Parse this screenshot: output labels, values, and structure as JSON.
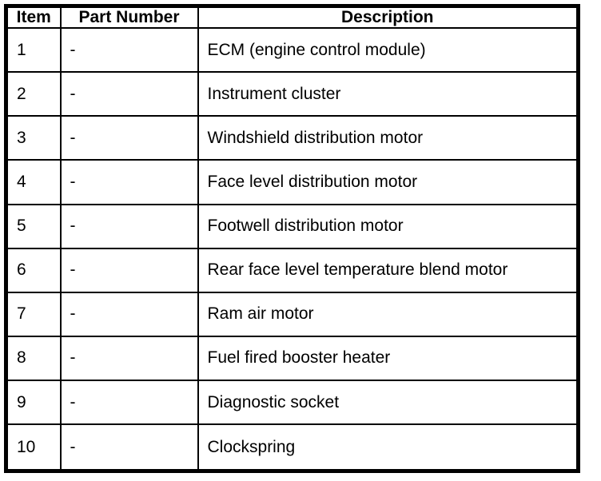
{
  "colors": {
    "border": "#000000",
    "background": "#ffffff",
    "text": "#000000"
  },
  "table": {
    "columns": [
      {
        "label": "Item"
      },
      {
        "label": "Part Number"
      },
      {
        "label": "Description"
      }
    ],
    "rows": [
      {
        "item": "1",
        "part_number": "-",
        "description": "ECM (engine control module)"
      },
      {
        "item": "2",
        "part_number": "-",
        "description": "Instrument cluster"
      },
      {
        "item": "3",
        "part_number": "-",
        "description": "Windshield distribution motor"
      },
      {
        "item": "4",
        "part_number": "-",
        "description": "Face level distribution motor"
      },
      {
        "item": "5",
        "part_number": "-",
        "description": "Footwell distribution motor"
      },
      {
        "item": "6",
        "part_number": "-",
        "description": "Rear face level temperature blend motor"
      },
      {
        "item": "7",
        "part_number": "-",
        "description": "Ram air motor"
      },
      {
        "item": "8",
        "part_number": "-",
        "description": "Fuel fired booster heater"
      },
      {
        "item": "9",
        "part_number": "-",
        "description": "Diagnostic socket"
      },
      {
        "item": "10",
        "part_number": "-",
        "description": "Clockspring"
      }
    ]
  }
}
